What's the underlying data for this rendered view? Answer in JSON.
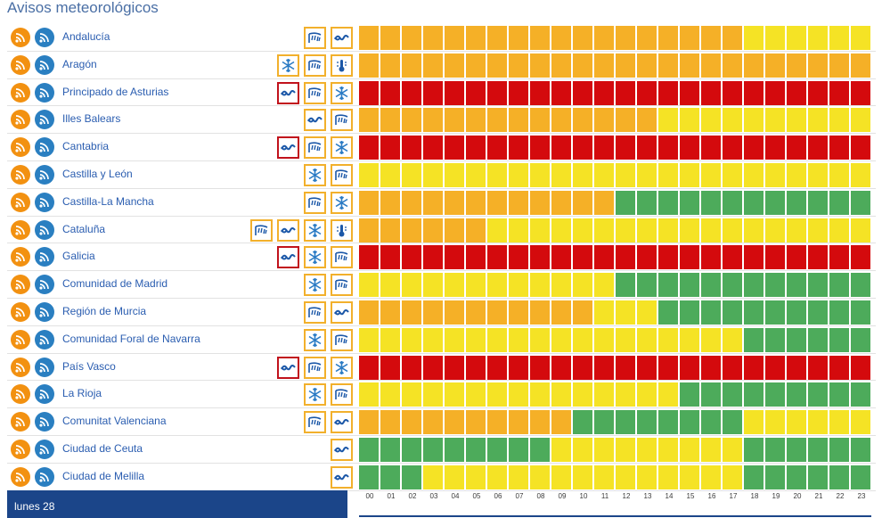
{
  "page": {
    "title": "Avisos meteorológicos"
  },
  "day_label": "lunes 28",
  "hours": [
    "00",
    "01",
    "02",
    "03",
    "04",
    "05",
    "06",
    "07",
    "08",
    "09",
    "10",
    "11",
    "12",
    "13",
    "14",
    "15",
    "16",
    "17",
    "18",
    "19",
    "20",
    "21",
    "22",
    "23"
  ],
  "colors": {
    "green": "#4dab5b",
    "yellow": "#f5e325",
    "orange": "#f5b027",
    "red": "#d40a0d",
    "rss_orange": "#f29111",
    "rss_blue": "#2a7fc1",
    "icon_border_yellow": "#f2b02c",
    "icon_border_red": "#c1121c",
    "footer": "#1b4589"
  },
  "regions": [
    {
      "name": "Andalucía",
      "icons": [
        {
          "type": "rain-icon",
          "level": "yellow"
        },
        {
          "type": "wave-icon",
          "level": "yellow"
        }
      ],
      "levels": [
        "o",
        "o",
        "o",
        "o",
        "o",
        "o",
        "o",
        "o",
        "o",
        "o",
        "o",
        "o",
        "o",
        "o",
        "o",
        "o",
        "o",
        "o",
        "y",
        "y",
        "y",
        "y",
        "y",
        "y"
      ]
    },
    {
      "name": "Aragón",
      "icons": [
        {
          "type": "snow-icon",
          "level": "yellow"
        },
        {
          "type": "rain-icon",
          "level": "yellow"
        },
        {
          "type": "thermometer-icon",
          "level": "yellow"
        }
      ],
      "levels": [
        "o",
        "o",
        "o",
        "o",
        "o",
        "o",
        "o",
        "o",
        "o",
        "o",
        "o",
        "o",
        "o",
        "o",
        "o",
        "o",
        "o",
        "o",
        "o",
        "o",
        "o",
        "o",
        "o",
        "o"
      ]
    },
    {
      "name": "Principado de Asturias",
      "icons": [
        {
          "type": "wave-icon",
          "level": "red"
        },
        {
          "type": "rain-icon",
          "level": "yellow"
        },
        {
          "type": "snow-icon",
          "level": "yellow"
        }
      ],
      "levels": [
        "r",
        "r",
        "r",
        "r",
        "r",
        "r",
        "r",
        "r",
        "r",
        "r",
        "r",
        "r",
        "r",
        "r",
        "r",
        "r",
        "r",
        "r",
        "r",
        "r",
        "r",
        "r",
        "r",
        "r"
      ]
    },
    {
      "name": "Illes Balears",
      "icons": [
        {
          "type": "wave-icon",
          "level": "yellow"
        },
        {
          "type": "rain-icon",
          "level": "yellow"
        }
      ],
      "levels": [
        "o",
        "o",
        "o",
        "o",
        "o",
        "o",
        "o",
        "o",
        "o",
        "o",
        "o",
        "o",
        "o",
        "o",
        "y",
        "y",
        "y",
        "y",
        "y",
        "y",
        "y",
        "y",
        "y",
        "y"
      ]
    },
    {
      "name": "Cantabria",
      "icons": [
        {
          "type": "wave-icon",
          "level": "red"
        },
        {
          "type": "rain-icon",
          "level": "yellow"
        },
        {
          "type": "snow-icon",
          "level": "yellow"
        }
      ],
      "levels": [
        "r",
        "r",
        "r",
        "r",
        "r",
        "r",
        "r",
        "r",
        "r",
        "r",
        "r",
        "r",
        "r",
        "r",
        "r",
        "r",
        "r",
        "r",
        "r",
        "r",
        "r",
        "r",
        "r",
        "r"
      ]
    },
    {
      "name": "Castilla y León",
      "icons": [
        {
          "type": "snow-icon",
          "level": "yellow"
        },
        {
          "type": "rain-icon",
          "level": "yellow"
        }
      ],
      "levels": [
        "y",
        "y",
        "y",
        "y",
        "y",
        "y",
        "y",
        "y",
        "y",
        "y",
        "y",
        "y",
        "y",
        "y",
        "y",
        "y",
        "y",
        "y",
        "y",
        "y",
        "y",
        "y",
        "y",
        "y"
      ]
    },
    {
      "name": "Castilla-La Mancha",
      "icons": [
        {
          "type": "rain-icon",
          "level": "yellow"
        },
        {
          "type": "snow-icon",
          "level": "yellow"
        }
      ],
      "levels": [
        "o",
        "o",
        "o",
        "o",
        "o",
        "o",
        "o",
        "o",
        "o",
        "o",
        "o",
        "o",
        "g",
        "g",
        "g",
        "g",
        "g",
        "g",
        "g",
        "g",
        "g",
        "g",
        "g",
        "g"
      ]
    },
    {
      "name": "Cataluña",
      "icons": [
        {
          "type": "rain-icon",
          "level": "yellow"
        },
        {
          "type": "wave-icon",
          "level": "yellow"
        },
        {
          "type": "snow-icon",
          "level": "yellow"
        },
        {
          "type": "thermometer-icon",
          "level": "yellow"
        }
      ],
      "levels": [
        "o",
        "o",
        "o",
        "o",
        "o",
        "o",
        "y",
        "y",
        "y",
        "y",
        "y",
        "y",
        "y",
        "y",
        "y",
        "y",
        "y",
        "y",
        "y",
        "y",
        "y",
        "y",
        "y",
        "y"
      ]
    },
    {
      "name": "Galicia",
      "icons": [
        {
          "type": "wave-icon",
          "level": "red"
        },
        {
          "type": "snow-icon",
          "level": "yellow"
        },
        {
          "type": "rain-icon",
          "level": "yellow"
        }
      ],
      "levels": [
        "r",
        "r",
        "r",
        "r",
        "r",
        "r",
        "r",
        "r",
        "r",
        "r",
        "r",
        "r",
        "r",
        "r",
        "r",
        "r",
        "r",
        "r",
        "r",
        "r",
        "r",
        "r",
        "r",
        "r"
      ]
    },
    {
      "name": "Comunidad de Madrid",
      "icons": [
        {
          "type": "snow-icon",
          "level": "yellow"
        },
        {
          "type": "rain-icon",
          "level": "yellow"
        }
      ],
      "levels": [
        "y",
        "y",
        "y",
        "y",
        "y",
        "y",
        "y",
        "y",
        "y",
        "y",
        "y",
        "y",
        "g",
        "g",
        "g",
        "g",
        "g",
        "g",
        "g",
        "g",
        "g",
        "g",
        "g",
        "g"
      ]
    },
    {
      "name": "Región de Murcia",
      "icons": [
        {
          "type": "rain-icon",
          "level": "yellow"
        },
        {
          "type": "wave-icon",
          "level": "yellow"
        }
      ],
      "levels": [
        "o",
        "o",
        "o",
        "o",
        "o",
        "o",
        "o",
        "o",
        "o",
        "o",
        "o",
        "y",
        "y",
        "y",
        "g",
        "g",
        "g",
        "g",
        "g",
        "g",
        "g",
        "g",
        "g",
        "g"
      ]
    },
    {
      "name": "Comunidad Foral de Navarra",
      "icons": [
        {
          "type": "snow-icon",
          "level": "yellow"
        },
        {
          "type": "rain-icon",
          "level": "yellow"
        }
      ],
      "levels": [
        "y",
        "y",
        "y",
        "y",
        "y",
        "y",
        "y",
        "y",
        "y",
        "y",
        "y",
        "y",
        "y",
        "y",
        "y",
        "y",
        "y",
        "y",
        "g",
        "g",
        "g",
        "g",
        "g",
        "g"
      ]
    },
    {
      "name": "País Vasco",
      "icons": [
        {
          "type": "wave-icon",
          "level": "red"
        },
        {
          "type": "rain-icon",
          "level": "yellow"
        },
        {
          "type": "snow-icon",
          "level": "yellow"
        }
      ],
      "levels": [
        "r",
        "r",
        "r",
        "r",
        "r",
        "r",
        "r",
        "r",
        "r",
        "r",
        "r",
        "r",
        "r",
        "r",
        "r",
        "r",
        "r",
        "r",
        "r",
        "r",
        "r",
        "r",
        "r",
        "r"
      ]
    },
    {
      "name": "La Rioja",
      "icons": [
        {
          "type": "snow-icon",
          "level": "yellow"
        },
        {
          "type": "rain-icon",
          "level": "yellow"
        }
      ],
      "levels": [
        "y",
        "y",
        "y",
        "y",
        "y",
        "y",
        "y",
        "y",
        "y",
        "y",
        "y",
        "y",
        "y",
        "y",
        "y",
        "g",
        "g",
        "g",
        "g",
        "g",
        "g",
        "g",
        "g",
        "g"
      ]
    },
    {
      "name": "Comunitat Valenciana",
      "icons": [
        {
          "type": "rain-icon",
          "level": "yellow"
        },
        {
          "type": "wave-icon",
          "level": "yellow"
        }
      ],
      "levels": [
        "o",
        "o",
        "o",
        "o",
        "o",
        "o",
        "o",
        "o",
        "o",
        "o",
        "g",
        "g",
        "g",
        "g",
        "g",
        "g",
        "g",
        "g",
        "y",
        "y",
        "y",
        "y",
        "y",
        "y"
      ]
    },
    {
      "name": "Ciudad de Ceuta",
      "icons": [
        {
          "type": "wave-icon",
          "level": "yellow"
        }
      ],
      "levels": [
        "g",
        "g",
        "g",
        "g",
        "g",
        "g",
        "g",
        "g",
        "g",
        "y",
        "y",
        "y",
        "y",
        "y",
        "y",
        "y",
        "y",
        "y",
        "g",
        "g",
        "g",
        "g",
        "g",
        "g"
      ]
    },
    {
      "name": "Ciudad de Melilla",
      "icons": [
        {
          "type": "wave-icon",
          "level": "yellow"
        }
      ],
      "levels": [
        "g",
        "g",
        "g",
        "y",
        "y",
        "y",
        "y",
        "y",
        "y",
        "y",
        "y",
        "y",
        "y",
        "y",
        "y",
        "y",
        "y",
        "y",
        "g",
        "g",
        "g",
        "g",
        "g",
        "g"
      ]
    }
  ]
}
